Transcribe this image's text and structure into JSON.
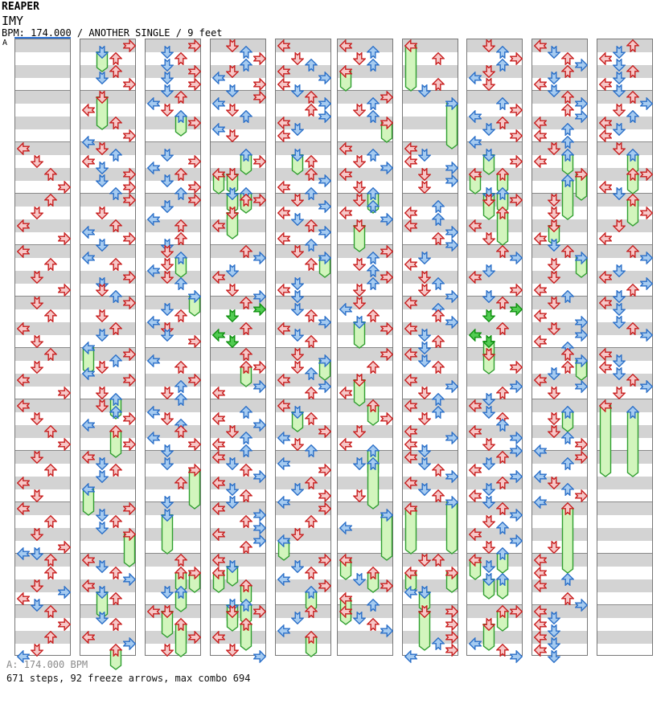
{
  "header": {
    "app_title": "REAPER",
    "song_title": "IMY",
    "meta_line": "BPM: 174.000 / ANOTHER SINGLE / 9 feet"
  },
  "section_marker": {
    "label": "A"
  },
  "footer": {
    "bpm_line": "A: 174.000 BPM",
    "stats_line": "671 steps, 92 freeze arrows, max combo 694"
  },
  "colors": {
    "note_red_fill": "#f6c8c8",
    "note_red_stroke": "#c81e1e",
    "note_blue_fill": "#a6cbf0",
    "note_blue_stroke": "#2a6fc8",
    "note_green_fill": "#52cc52",
    "note_green_stroke": "#0f9010",
    "freeze_fill": "#d2f5bd",
    "freeze_stroke": "#2f9e2f",
    "band_gray": "#d3d3d3",
    "column_border": "#787878",
    "measure_line": "#8a8a8a",
    "section_line_blue": "#2e72d4",
    "footer_gray": "#8a8a8a"
  },
  "chart": {
    "lanes": [
      "L",
      "D",
      "U",
      "R"
    ],
    "measures_per_column": 12,
    "beats_per_measure": 4,
    "note_types": {
      "r": "4th-note (red)",
      "b": "8th-note (blue)",
      "g": "16th-note (green)",
      "last-number": "freeze length in 8ths"
    },
    "columns": [
      {
        "arrows": [
          "16 L r",
          "18 D r",
          "20 U r",
          "22 R r",
          "24 U r",
          "26 D r",
          "28 L r",
          "30 R r",
          "32 L r",
          "34 U r",
          "36 D r",
          "38 R r",
          "40 D r",
          "42 U r",
          "44 L r",
          "46 D r",
          "48 U r",
          "50 D r",
          "52 L r",
          "54 R r",
          "56 L r",
          "58 D r",
          "60 U r",
          "62 R r",
          "64 D r",
          "66 U r",
          "68 L r",
          "70 D r",
          "72 L r",
          "74 U r",
          "76 D r",
          "78 R r",
          "79 D b",
          "79 L b",
          "80 U r",
          "82 U r",
          "84 D r",
          "85 R b",
          "86 L r",
          "87 D b",
          "88 U r",
          "90 R r",
          "92 U r",
          "94 D r",
          "95 L b"
        ]
      },
      {
        "arrows": [
          "0 R r",
          "1 D b 2",
          "2 U r",
          "4 U r",
          "5 D b",
          "6 R r",
          "8 D r 4",
          "10 L r",
          "12 U r",
          "14 R r",
          "15 L b",
          "16 D r",
          "17 U b",
          "18 L r",
          "19 D b",
          "20 R r",
          "21 D b",
          "22 R r",
          "23 U b",
          "24 R r",
          "26 D r",
          "28 U r",
          "29 L b",
          "30 R r",
          "31 D b",
          "33 L b",
          "34 U r",
          "36 R r",
          "37 D b",
          "38 D r",
          "39 U b",
          "40 R r",
          "42 D r",
          "44 U r",
          "45 D b",
          "47 L b 3",
          "48 R r",
          "49 U b",
          "50 D r",
          "51 L b",
          "52 R r",
          "54 D r",
          "55 U b 2",
          "56 D r",
          "57 U b",
          "58 R r",
          "59 L b",
          "60 U r 3",
          "62 R r",
          "64 L r",
          "65 D b",
          "66 U r",
          "67 D b",
          "69 L b 3",
          "72 R r",
          "73 D b",
          "74 U r",
          "75 D b",
          "76 R r 4",
          "80 L r",
          "81 D b",
          "82 U r",
          "83 R b",
          "84 L r",
          "85 D b 3",
          "86 U r",
          "89 D b",
          "90 U r",
          "92 L r",
          "93 R b",
          "94 U r 2"
        ]
      },
      {
        "arrows": [
          "0 R r",
          "1 D b",
          "2 U r",
          "3 D b",
          "4 R r",
          "5 D b",
          "6 R r",
          "7 D b",
          "8 U r",
          "9 L b",
          "10 D r",
          "11 U b 2",
          "12 R r",
          "17 D b",
          "18 R r",
          "19 L b",
          "20 U r",
          "21 D b",
          "22 R r",
          "23 U b",
          "24 R r",
          "25 D b",
          "27 L b",
          "28 U r",
          "30 U r",
          "31 D b",
          "32 D r",
          "33 U b 2",
          "34 D r",
          "35 L b",
          "36 D r",
          "37 U b",
          "39 R b 2",
          "41 D b",
          "42 U r",
          "43 L b",
          "44 D r",
          "45 D b",
          "46 R r",
          "49 L b",
          "50 U r",
          "52 R r",
          "53 U b",
          "54 D r",
          "55 U b",
          "57 L b",
          "58 D r",
          "59 U b",
          "60 U r",
          "61 L b",
          "62 R r",
          "63 D b",
          "65 D b",
          "66 R r 5",
          "68 U r",
          "71 D b",
          "73 D b 5",
          "80 U r",
          "82 U r 2",
          "82 R r 2",
          "85 D b",
          "85 U b 2",
          "88 L r",
          "88 D r 3",
          "90 U r 4",
          "92 R r",
          "94 D r"
        ]
      },
      {
        "arrows": [
          "0 D r",
          "1 U b",
          "2 R r",
          "3 U b",
          "4 D r",
          "5 L b",
          "6 R r",
          "7 D b",
          "8 R r",
          "9 L b",
          "10 D r",
          "11 U b",
          "13 L b",
          "14 D r",
          "17 U b 2",
          "18 R r",
          "20 L r 2",
          "20 D r 2",
          "23 D b 2",
          "23 U b 2",
          "24 U r",
          "24 R r",
          "26 D r 3",
          "28 L r",
          "32 U r",
          "33 R b",
          "35 D b",
          "36 L r",
          "38 D r",
          "39 R b",
          "40 U r",
          "41 R g",
          "42 D g",
          "44 U r",
          "45 L g",
          "46 D g",
          "48 U r",
          "50 U r 2",
          "50 R r",
          "53 R b",
          "54 L r",
          "57 U b",
          "58 L r",
          "59 R b",
          "60 D r",
          "61 U b",
          "62 L r",
          "63 U b",
          "64 L r",
          "65 D b",
          "66 U r",
          "67 R b",
          "68 L r",
          "69 D b",
          "70 U r",
          "71 D b",
          "72 L r",
          "73 R b",
          "74 U r",
          "75 R b",
          "76 L r",
          "77 R b",
          "78 U r",
          "80 L r",
          "81 D b 2",
          "82 L r 2",
          "84 U r 2",
          "87 D b 2",
          "87 U b 2",
          "88 D r 2",
          "88 R r",
          "90 U r 3",
          "92 L r",
          "94 D r",
          "95 R b"
        ]
      },
      {
        "arrows": [
          "0 L r",
          "2 D r",
          "3 U b",
          "4 L r",
          "5 R b",
          "6 L r",
          "7 D b",
          "8 U r",
          "9 R b",
          "10 U r",
          "11 R b",
          "12 L r",
          "13 D b",
          "14 L r",
          "17 D b 2",
          "18 U r",
          "20 U r",
          "21 R b",
          "22 L r",
          "23 U b",
          "24 D r",
          "25 R b",
          "26 L r",
          "27 D b",
          "28 U r",
          "29 R b",
          "30 L r",
          "31 U b",
          "32 D r",
          "33 R b 2",
          "34 U r",
          "37 D b",
          "38 L r",
          "39 D b",
          "41 D b",
          "42 U r",
          "43 R b",
          "44 L r",
          "45 D b",
          "46 U r",
          "48 D r",
          "49 R b 2",
          "50 D r",
          "51 U b",
          "52 L r",
          "53 R b",
          "54 U r",
          "56 L r",
          "57 D b 2",
          "58 U r",
          "60 R r",
          "61 L b",
          "62 D r",
          "63 U b",
          "65 L b",
          "66 R r",
          "68 U r",
          "69 D b",
          "70 R r",
          "71 L b",
          "72 R r",
          "74 U r",
          "76 D r",
          "77 L b 2",
          "80 R r",
          "81 D b",
          "82 U r",
          "83 L b",
          "84 R r",
          "85 U b 2",
          "88 U r",
          "89 D b",
          "91 L b",
          "92 U r 2"
        ]
      },
      {
        "arrows": [
          "0 L r",
          "1 U b",
          "2 D r",
          "3 U b",
          "4 L r 2",
          "8 R r",
          "9 U b",
          "10 D r",
          "11 U b",
          "12 R r 2",
          "16 L r",
          "17 U b",
          "18 D r",
          "19 R b",
          "20 L r",
          "22 D r",
          "23 U b 2",
          "24 D r",
          "25 U b",
          "26 L r",
          "27 R b",
          "28 D r 3",
          "32 R r",
          "33 U b",
          "34 D r",
          "35 U b",
          "36 R r",
          "37 U b",
          "38 D r",
          "40 D r",
          "41 L b",
          "42 U r",
          "43 D b 3",
          "44 R r",
          "48 R r",
          "50 U r",
          "52 D r 3",
          "54 L r",
          "56 U r 2",
          "58 R r",
          "60 D r",
          "62 L r",
          "63 U b 3",
          "65 D b",
          "65 U b 6",
          "70 D r",
          "73 R b 6",
          "75 L b",
          "80 L r 2",
          "82 U r 2",
          "83 D b",
          "84 R r",
          "86 L r 3",
          "87 U b",
          "88 L r",
          "89 D b",
          "90 U r",
          "91 R b"
        ]
      },
      {
        "arrows": [
          "0 L r 6",
          "2 U r",
          "6 U r",
          "7 D b",
          "9 R b 6",
          "16 L r",
          "17 D b",
          "18 L r",
          "19 R b",
          "20 D r",
          "21 R b",
          "22 D r",
          "25 U b",
          "26 L r",
          "27 U b",
          "28 L r",
          "29 R b",
          "30 U r",
          "31 R b",
          "33 D b",
          "34 L r",
          "36 D r",
          "37 U b",
          "38 D r",
          "39 R b",
          "40 L r",
          "41 U b",
          "42 U r",
          "43 R b",
          "44 L r",
          "45 D b",
          "46 U r",
          "47 D b",
          "48 L r",
          "49 D b",
          "50 U r",
          "52 L r",
          "53 R b",
          "54 D r",
          "55 U b",
          "56 L r",
          "57 U b",
          "58 D r",
          "60 L r",
          "61 R b",
          "62 L r",
          "63 D b",
          "64 L r",
          "65 D b",
          "66 U r",
          "67 R b",
          "68 L r",
          "69 D b",
          "70 U r",
          "71 R b 7",
          "72 L r 6",
          "80 D r",
          "80 U r",
          "82 L r 2",
          "82 R r 2",
          "85 L b",
          "85 D b 2",
          "88 D r 5",
          "88 R r",
          "90 R r",
          "92 R r",
          "93 U b",
          "94 R r",
          "95 L b"
        ]
      },
      {
        "arrows": [
          "0 D r",
          "1 U b",
          "2 R r",
          "3 U b",
          "4 D r",
          "5 L b",
          "6 D r",
          "9 U b",
          "10 R r",
          "11 L b",
          "12 U r",
          "13 D b",
          "14 R r",
          "15 L b",
          "17 D b 2",
          "18 R r",
          "20 L r 2",
          "20 U r 2",
          "23 D b 2",
          "23 U b 2",
          "24 D r 2",
          "24 R r",
          "26 U r 4",
          "28 L r",
          "30 D r",
          "32 U r",
          "33 R b",
          "35 D b",
          "36 L r",
          "38 R r",
          "39 D b",
          "40 U r",
          "41 R g",
          "42 D g",
          "44 U r",
          "45 L g",
          "46 D g 2",
          "48 D r 2",
          "50 R r",
          "53 R b",
          "54 U r",
          "55 D b",
          "56 L r",
          "57 D b",
          "58 U r",
          "59 U b",
          "60 L r",
          "61 R b",
          "62 D r",
          "63 R b",
          "64 U r",
          "65 D b",
          "66 L r",
          "67 R b",
          "68 U r",
          "69 D b",
          "70 L r",
          "71 D b",
          "72 U r",
          "73 R b",
          "74 D r",
          "75 U b",
          "76 L r",
          "77 R b",
          "78 D r",
          "79 U b 2",
          "80 L r 2",
          "81 D b",
          "83 D b 2",
          "83 U b 2",
          "88 U r 2",
          "88 R r",
          "90 D r 3",
          "93 L b",
          "94 U r",
          "95 R b"
        ]
      },
      {
        "arrows": [
          "0 L r",
          "1 D b",
          "2 U r",
          "3 R b",
          "4 U r",
          "5 D b",
          "6 L r",
          "7 D b",
          "8 U r",
          "9 R b",
          "10 U r",
          "11 R b",
          "12 L r",
          "13 U b",
          "14 L r",
          "15 U b",
          "16 D r",
          "17 U b 2",
          "18 L r",
          "20 R r 3",
          "21 U b 5",
          "24 D r",
          "26 D r",
          "28 D r 2",
          "30 L r",
          "31 D b",
          "32 U r",
          "33 R b 2",
          "34 D r",
          "36 D r",
          "38 L r",
          "39 U b",
          "40 D r",
          "42 L r",
          "43 R b",
          "44 D r",
          "45 R b",
          "46 L r",
          "47 U b",
          "48 U r",
          "49 R b 2",
          "50 U r",
          "51 D b",
          "52 L r",
          "53 R b",
          "54 D r",
          "57 U b 2",
          "58 D r",
          "60 D r",
          "61 U b",
          "62 R r",
          "63 L b",
          "64 R r",
          "65 U b",
          "67 L b",
          "68 D r",
          "69 U b",
          "70 R r",
          "71 L b",
          "72 U r 9",
          "78 D r",
          "80 L r",
          "82 L r",
          "83 U b",
          "84 L r",
          "86 U r",
          "87 R b",
          "88 L r",
          "89 D b",
          "90 L r",
          "91 D b",
          "92 L r",
          "93 D b",
          "94 L r",
          "95 D b"
        ]
      },
      {
        "arrows": [
          "0 U r",
          "1 D b",
          "2 L r",
          "3 D b",
          "4 U r",
          "5 D b",
          "6 L r",
          "7 D b",
          "8 U r",
          "9 R b",
          "10 D r",
          "11 U b",
          "12 L r",
          "13 D b",
          "14 L r",
          "16 D r",
          "17 U b 2",
          "20 U r 2",
          "20 R r",
          "22 L r",
          "23 D b",
          "24 U r 3",
          "26 R r",
          "28 D r",
          "30 L r",
          "32 U r",
          "33 R b",
          "35 D b",
          "36 L r",
          "37 R b",
          "38 U r",
          "39 D b",
          "40 L r",
          "41 D b",
          "43 D b",
          "44 U r",
          "45 R b",
          "48 L r",
          "49 D b",
          "50 L r",
          "51 D b",
          "52 U r",
          "53 R b",
          "54 D r",
          "56 L r 10",
          "57 U b 9"
        ]
      }
    ]
  }
}
